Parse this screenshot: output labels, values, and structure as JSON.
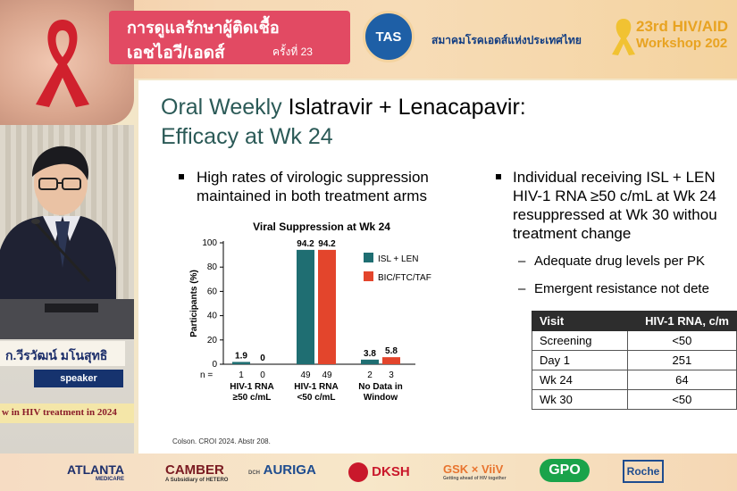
{
  "banner": {
    "title_line1": "การดูแลรักษาผู้ติดเชื้อ",
    "title_line2": "เอชไอวี/เอดส์",
    "title_suffix": "ครั้งที่ 23",
    "logo_text": "TAS",
    "society_name": "สมาคมโรคเอดส์แห่งประเทศไทย",
    "workshop_line1": "23rd HIV/AID",
    "workshop_line2": "Workshop 202",
    "colors": {
      "title_bg": "#e24a63",
      "logo_bg": "#1e5fa6",
      "workshop": "#e8a321"
    }
  },
  "speaker": {
    "name": "ก.วีรวัฒน์ มโนสุทธิ",
    "role": "speaker",
    "topic": "w in HIV treatment in 2024"
  },
  "slide": {
    "title_part1": "Oral Weekly ",
    "title_drug": "Islatravir + Lenacapavir:",
    "title_line2": "Efficacy at Wk 24",
    "left_bullet_line1": "High rates of virologic suppression",
    "left_bullet_line2": "maintained in both treatment arms",
    "right_bullet_line1": "Individual receiving ISL + LEN",
    "right_bullet_line2": "HIV-1 RNA ≥50 c/mL at Wk 24",
    "right_bullet_line3": "resuppressed at Wk 30 withou",
    "right_bullet_line4": "treatment change",
    "sub_bullet1": "Adequate drug levels per PK",
    "sub_bullet2": "Emergent resistance not dete",
    "citation": "Colson. CROI 2024. Abstr 208."
  },
  "chart_data": {
    "type": "bar",
    "title": "Viral Suppression at Wk 24",
    "ylabel": "Participants (%)",
    "ylim": [
      0,
      100
    ],
    "yticks": [
      0,
      20,
      40,
      60,
      80,
      100
    ],
    "n_label": "n =",
    "categories": [
      {
        "line1": "HIV-1 RNA",
        "line2": "≥50 c/mL"
      },
      {
        "line1": "HIV-1 RNA",
        "line2": "<50 c/mL"
      },
      {
        "line1": "No Data in",
        "line2": "Window"
      }
    ],
    "series": [
      {
        "name": "ISL + LEN",
        "color": "#1f6e72",
        "values": [
          1.9,
          94.2,
          3.8
        ],
        "n": [
          1,
          49,
          2
        ]
      },
      {
        "name": "BIC/FTC/TAF",
        "color": "#e3452c",
        "values": [
          0,
          94.2,
          5.8
        ],
        "n": [
          0,
          49,
          3
        ]
      }
    ],
    "legend": "top-right"
  },
  "table": {
    "headers": [
      "Visit",
      "HIV-1 RNA, c/m"
    ],
    "rows": [
      [
        "Screening",
        "<50"
      ],
      [
        "Day 1",
        "251"
      ],
      [
        "Wk 24",
        "64"
      ],
      [
        "Wk 30",
        "<50"
      ]
    ]
  },
  "sponsors": [
    {
      "name": "ATLANTA",
      "sub": "MEDICARE"
    },
    {
      "name": "CAMBER",
      "sub": "A Subsidiary of HETERO"
    },
    {
      "name": "AURIGA",
      "sub": "DCH"
    },
    {
      "name": "DKSH",
      "sub": ""
    },
    {
      "name": "GSK × ViiV",
      "sub": "Getting ahead of HIV together"
    },
    {
      "name": "GPO",
      "sub": ""
    },
    {
      "name": "Roche",
      "sub": ""
    }
  ]
}
